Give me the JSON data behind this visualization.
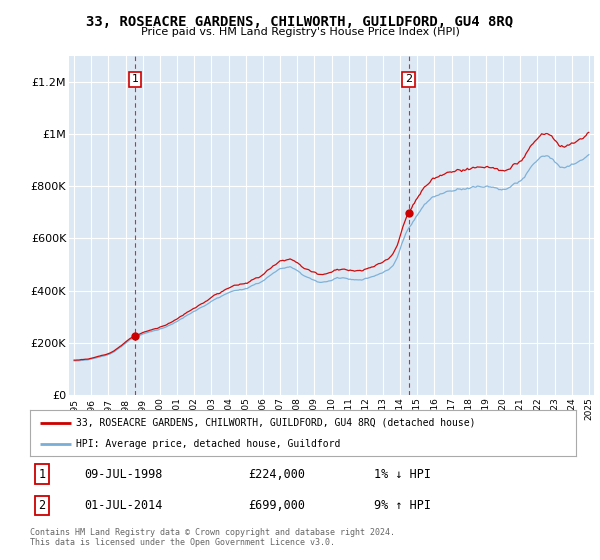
{
  "title": "33, ROSEACRE GARDENS, CHILWORTH, GUILDFORD, GU4 8RQ",
  "subtitle": "Price paid vs. HM Land Registry's House Price Index (HPI)",
  "ylabel_ticks": [
    "£0",
    "£200K",
    "£400K",
    "£600K",
    "£800K",
    "£1M",
    "£1.2M"
  ],
  "ytick_values": [
    0,
    200000,
    400000,
    600000,
    800000,
    1000000,
    1200000
  ],
  "ylim": [
    0,
    1300000
  ],
  "xlim": [
    1994.7,
    2025.3
  ],
  "xtick_years": [
    1995,
    1996,
    1997,
    1998,
    1999,
    2000,
    2001,
    2002,
    2003,
    2004,
    2005,
    2006,
    2007,
    2008,
    2009,
    2010,
    2011,
    2012,
    2013,
    2014,
    2015,
    2016,
    2017,
    2018,
    2019,
    2020,
    2021,
    2022,
    2023,
    2024,
    2025
  ],
  "purchase1": {
    "label": "1",
    "year": 1998.54,
    "price": 224000,
    "date": "09-JUL-1998",
    "pct": "1%",
    "dir": "↓"
  },
  "purchase2": {
    "label": "2",
    "year": 2014.5,
    "price": 699000,
    "date": "01-JUL-2014",
    "pct": "9%",
    "dir": "↑"
  },
  "legend_house": "33, ROSEACRE GARDENS, CHILWORTH, GUILDFORD, GU4 8RQ (detached house)",
  "legend_hpi": "HPI: Average price, detached house, Guildford",
  "footer": "Contains HM Land Registry data © Crown copyright and database right 2024.\nThis data is licensed under the Open Government Licence v3.0.",
  "line_color_house": "#cc0000",
  "line_color_hpi": "#7aaed6",
  "vline_color": "#cc0000",
  "background_color": "#ffffff",
  "plot_bg_color": "#dce9f5",
  "grid_color": "#ffffff",
  "title_fontsize": 10,
  "subtitle_fontsize": 8
}
